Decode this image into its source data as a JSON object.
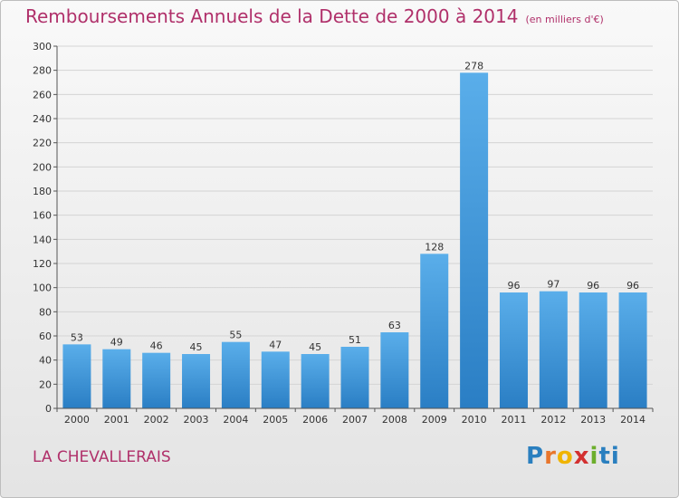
{
  "header": {
    "title": "Remboursements Annuels de la Dette de 2000 à 2014",
    "unit": "(en milliers d'€)"
  },
  "footer": {
    "commune": "LA CHEVALLERAIS",
    "logo_text": "Proxiti"
  },
  "colors": {
    "bar_light": "#5aaeea",
    "bar_dark": "#2a7ec4",
    "title": "#b0306a"
  },
  "chart_data": {
    "type": "bar",
    "title": "Remboursements Annuels de la Dette de 2000 à 2014",
    "subtitle": "(en milliers d'€)",
    "xlabel": "",
    "ylabel": "",
    "categories": [
      "2000",
      "2001",
      "2002",
      "2003",
      "2004",
      "2005",
      "2006",
      "2007",
      "2008",
      "2009",
      "2010",
      "2011",
      "2012",
      "2013",
      "2014"
    ],
    "values": [
      53,
      49,
      46,
      45,
      55,
      47,
      45,
      51,
      63,
      128,
      278,
      96,
      97,
      96,
      96
    ],
    "ylim": [
      0,
      300
    ],
    "yticks": [
      0,
      20,
      40,
      60,
      80,
      100,
      120,
      140,
      160,
      180,
      200,
      220,
      240,
      260,
      280,
      300
    ],
    "grid": true,
    "legend": "none"
  }
}
